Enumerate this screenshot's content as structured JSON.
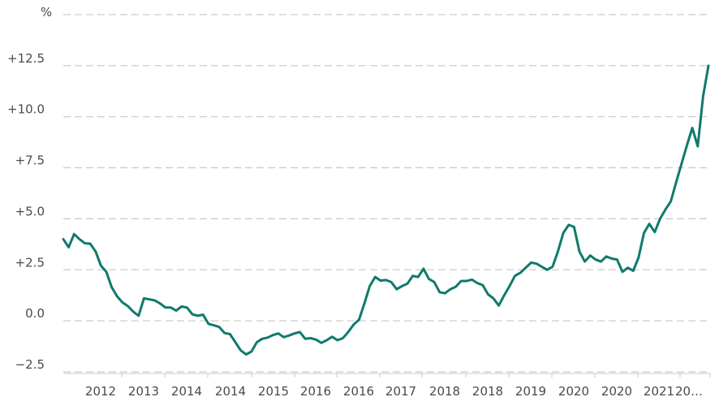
{
  "chart_data": {
    "type": "line",
    "y_unit_label": "%",
    "ylim": [
      -2.5,
      15
    ],
    "y_ticks": [
      {
        "value": 12.5,
        "label": "+12.5"
      },
      {
        "value": 10,
        "label": "+10.0"
      },
      {
        "value": 7.5,
        "label": "+7.5"
      },
      {
        "value": 5,
        "label": "+5.0"
      },
      {
        "value": 2.5,
        "label": "+2.5"
      },
      {
        "value": 0,
        "label": "0.0"
      },
      {
        "value": -2.5,
        "label": "−2.5"
      }
    ],
    "x_tick_labels": [
      "2012",
      "2013",
      "2014",
      "2014",
      "2015",
      "2016",
      "2016",
      "2017",
      "2018",
      "2018",
      "2019",
      "2020",
      "2020",
      "2021",
      "20…"
    ],
    "grid": true,
    "series": [
      {
        "color": "#0f7a6c",
        "values": [
          4.0,
          3.6,
          4.25,
          4.0,
          3.8,
          3.78,
          3.4,
          2.7,
          2.4,
          1.65,
          1.2,
          0.9,
          0.72,
          0.45,
          0.25,
          1.1,
          1.05,
          1.0,
          0.85,
          0.65,
          0.65,
          0.5,
          0.7,
          0.65,
          0.32,
          0.25,
          0.3,
          -0.15,
          -0.22,
          -0.3,
          -0.6,
          -0.65,
          -1.05,
          -1.45,
          -1.65,
          -1.5,
          -1.05,
          -0.88,
          -0.82,
          -0.7,
          -0.62,
          -0.8,
          -0.72,
          -0.62,
          -0.55,
          -0.88,
          -0.85,
          -0.92,
          -1.08,
          -0.95,
          -0.78,
          -0.95,
          -0.85,
          -0.55,
          -0.18,
          0.05,
          0.85,
          1.7,
          2.15,
          1.97,
          2.0,
          1.9,
          1.55,
          1.7,
          1.82,
          2.2,
          2.15,
          2.55,
          2.05,
          1.9,
          1.4,
          1.35,
          1.55,
          1.67,
          1.95,
          1.95,
          2.02,
          1.85,
          1.75,
          1.3,
          1.1,
          0.75,
          1.25,
          1.7,
          2.2,
          2.35,
          2.6,
          2.85,
          2.8,
          2.65,
          2.5,
          2.65,
          3.4,
          4.3,
          4.7,
          4.6,
          3.4,
          2.9,
          3.2,
          3.0,
          2.9,
          3.15,
          3.05,
          3.0,
          2.4,
          2.6,
          2.45,
          3.1,
          4.3,
          4.75,
          4.35,
          5.0,
          5.45,
          5.85,
          6.8,
          7.7,
          8.6,
          9.45,
          8.55,
          11.0,
          12.5
        ]
      }
    ]
  }
}
